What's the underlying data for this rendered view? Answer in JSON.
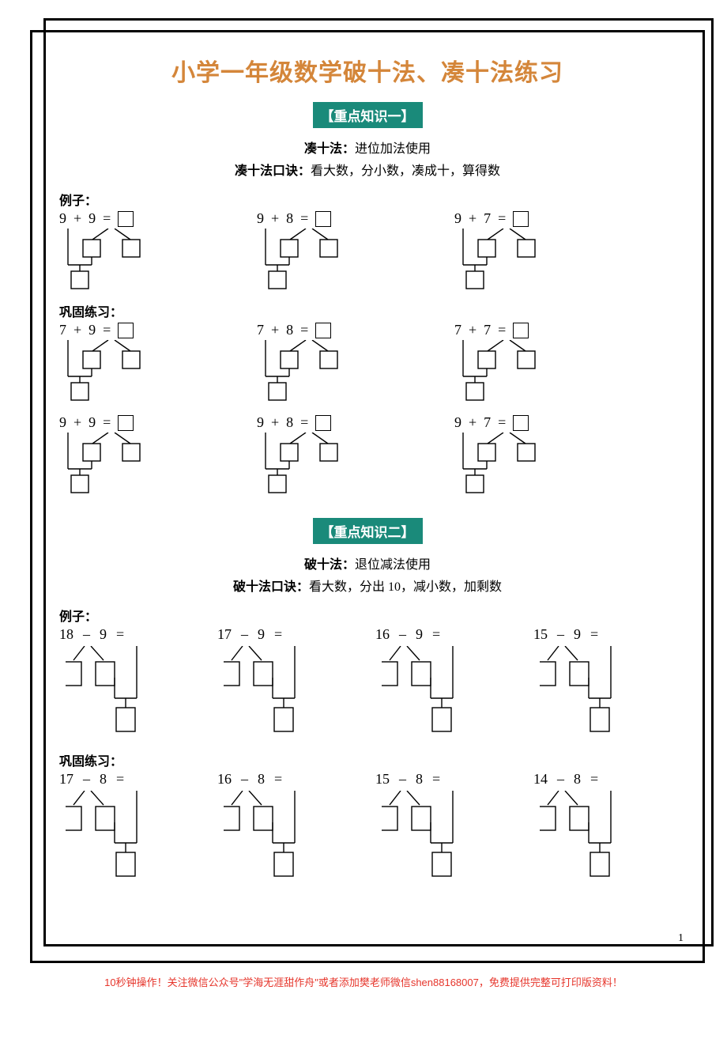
{
  "title": "小学一年级数学破十法、凑十法练习",
  "section1": {
    "badge": "【重点知识一】",
    "method_label": "凑十法：",
    "method_desc": "进位加法使用",
    "rhyme_label": "凑十法口诀：",
    "rhyme_desc": "看大数，分小数，凑成十，算得数",
    "example_label": "例子：",
    "practice_label": "巩固练习：",
    "examples": [
      {
        "a": "9",
        "op": "+",
        "b": "9",
        "eq": "="
      },
      {
        "a": "9",
        "op": "+",
        "b": "8",
        "eq": "="
      },
      {
        "a": "9",
        "op": "+",
        "b": "7",
        "eq": "="
      }
    ],
    "practice1": [
      {
        "a": "7",
        "op": "+",
        "b": "9",
        "eq": "="
      },
      {
        "a": "7",
        "op": "+",
        "b": "8",
        "eq": "="
      },
      {
        "a": "7",
        "op": "+",
        "b": "7",
        "eq": "="
      }
    ],
    "practice2": [
      {
        "a": "9",
        "op": "+",
        "b": "9",
        "eq": "="
      },
      {
        "a": "9",
        "op": "+",
        "b": "8",
        "eq": "="
      },
      {
        "a": "9",
        "op": "+",
        "b": "7",
        "eq": "="
      }
    ]
  },
  "section2": {
    "badge": "【重点知识二】",
    "method_label": "破十法：",
    "method_desc": "退位减法使用",
    "rhyme_label": "破十法口诀：",
    "rhyme_desc": "看大数，分出 10，减小数，加剩数",
    "example_label": "例子：",
    "practice_label": "巩固练习：",
    "examples": [
      {
        "a": "18",
        "op": "–",
        "b": "9",
        "eq": "="
      },
      {
        "a": "17",
        "op": "– ",
        "b": "9",
        "eq": "="
      },
      {
        "a": "16",
        "op": "–",
        "b": "9",
        "eq": "="
      },
      {
        "a": "15",
        "op": "–",
        "b": "9",
        "eq": "="
      }
    ],
    "practice": [
      {
        "a": "17",
        "op": "–",
        "b": "8",
        "eq": "="
      },
      {
        "a": "16",
        "op": "–",
        "b": "8",
        "eq": "="
      },
      {
        "a": "15",
        "op": "–",
        "b": "8",
        "eq": "="
      },
      {
        "a": "14",
        "op": "–",
        "b": "8",
        "eq": "="
      }
    ]
  },
  "page_num": "1",
  "footer": "10秒钟操作！关注微信公众号\"学海无涯甜作舟\"或者添加樊老师微信shen88168007，免费提供完整可打印版资料！",
  "colors": {
    "title": "#d4863a",
    "badge_bg": "#1a8a7a",
    "badge_fg": "#ffffff",
    "footer": "#e6352b",
    "line": "#000000"
  }
}
